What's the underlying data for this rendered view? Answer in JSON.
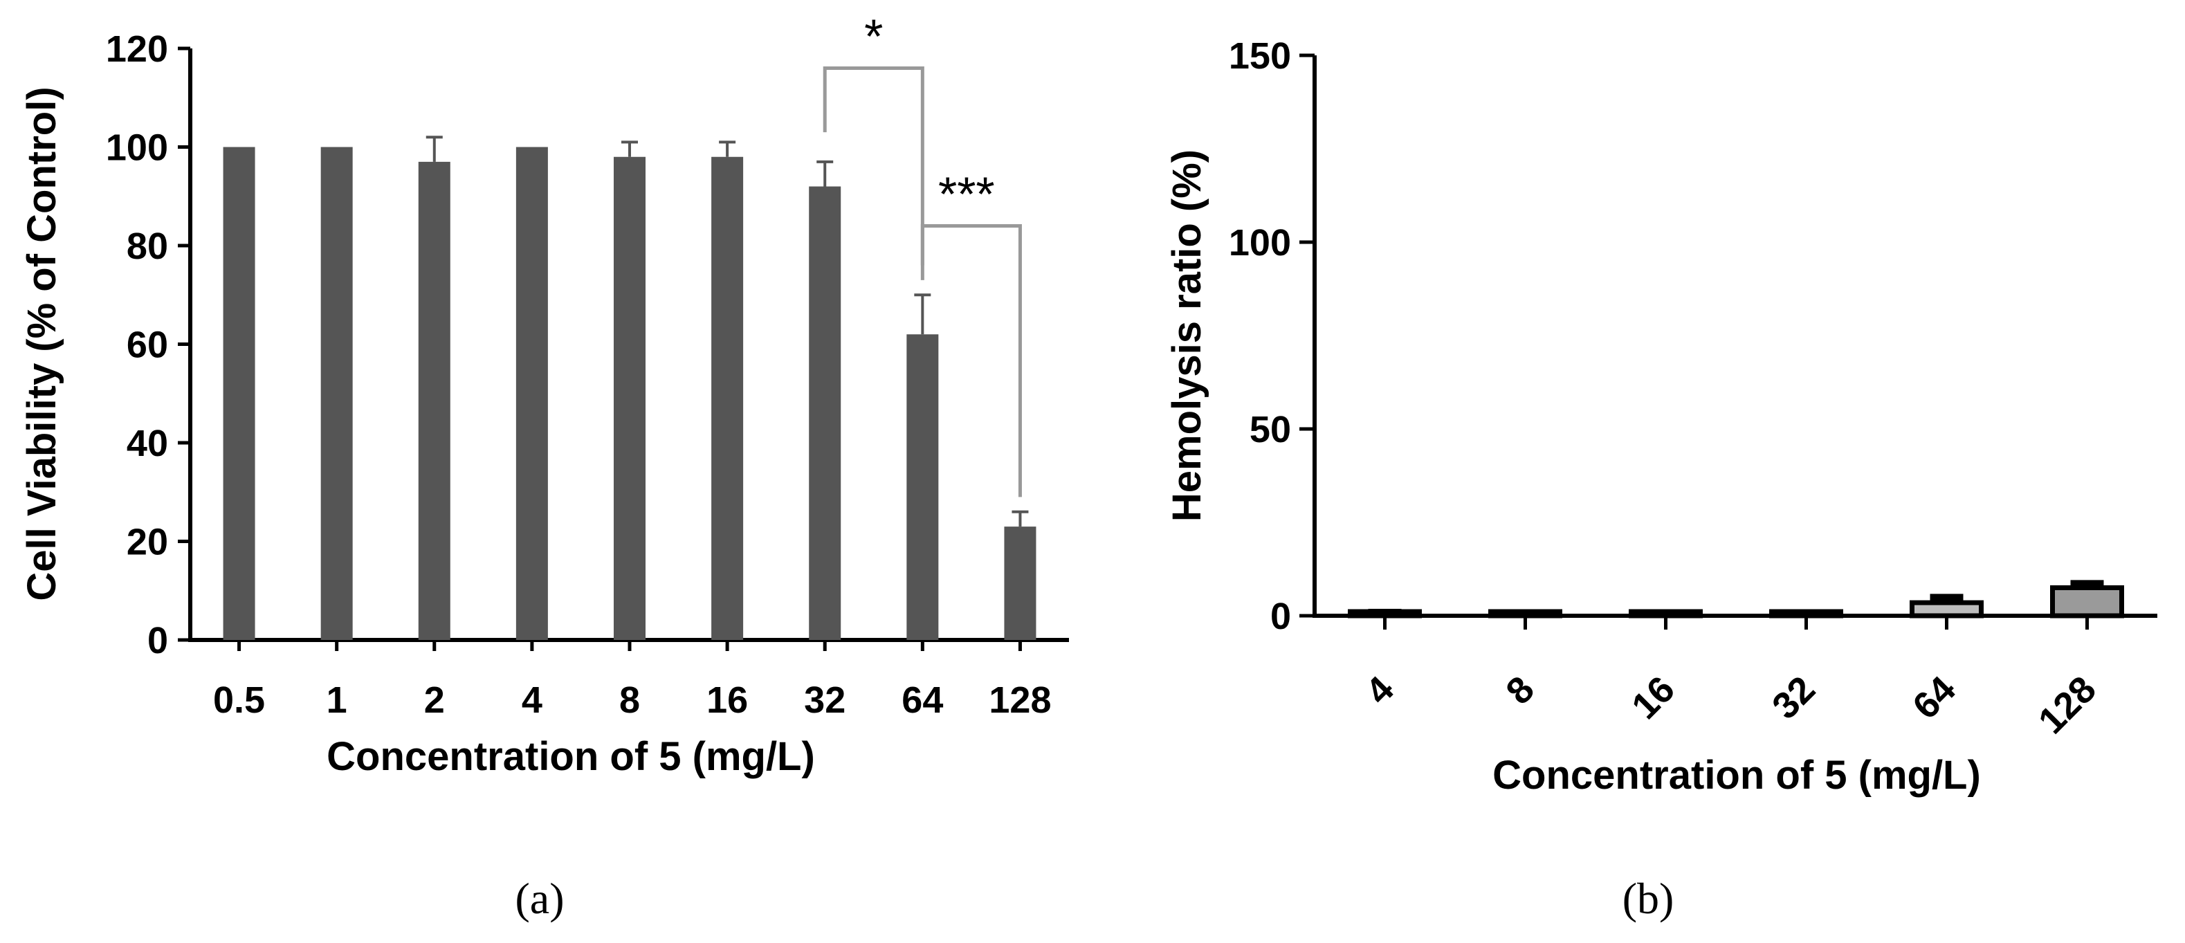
{
  "chart_data": [
    {
      "panel": "(a)",
      "type": "bar",
      "categories": [
        "0.5",
        "1",
        "2",
        "4",
        "8",
        "16",
        "32",
        "64",
        "128"
      ],
      "values": [
        100,
        100,
        97,
        100,
        98,
        98,
        92,
        62,
        23
      ],
      "errors": [
        0,
        0,
        5,
        0,
        3,
        3,
        5,
        8,
        3
      ],
      "xlabel": "Concentration of 5 (mg/L)",
      "ylabel": "Cell Viability (% of Control)",
      "ylim": [
        0,
        120
      ],
      "yticks": [
        "0",
        "20",
        "40",
        "60",
        "80",
        "100",
        "120"
      ],
      "bar_color": "#555555",
      "significance": [
        {
          "from": "32",
          "to": "64",
          "label": "*"
        },
        {
          "from": "64",
          "to": "128",
          "label": "***"
        }
      ]
    },
    {
      "panel": "(b)",
      "type": "bar",
      "categories": [
        "4",
        "8",
        "16",
        "32",
        "64",
        "128"
      ],
      "values": [
        0.8,
        0.5,
        0.3,
        0.5,
        3.5,
        7.5
      ],
      "errors": [
        0.5,
        0.4,
        0.3,
        0.6,
        1.8,
        1.5
      ],
      "xlabel": "Concentration of 5 (mg/L)",
      "ylabel": "Hemolysis ratio (%)",
      "ylim": [
        0,
        150
      ],
      "yticks": [
        "0",
        "50",
        "100",
        "150"
      ],
      "bar_colors": [
        "#ffffff",
        "#ffffff",
        "#ffffff",
        "#ffffff",
        "#bdbdbd",
        "#9a9a9a"
      ]
    }
  ]
}
